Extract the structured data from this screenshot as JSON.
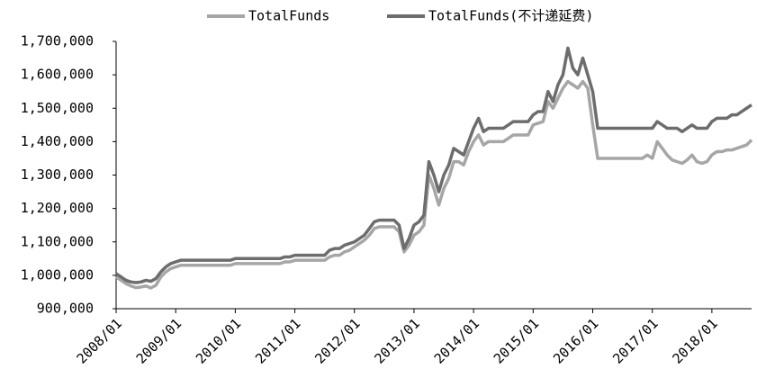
{
  "chart_data": {
    "type": "line",
    "categories": [
      "2008/01",
      null,
      null,
      null,
      null,
      null,
      null,
      null,
      null,
      null,
      null,
      null,
      "2009/01",
      null,
      null,
      null,
      null,
      null,
      null,
      null,
      null,
      null,
      null,
      null,
      "2010/01",
      null,
      null,
      null,
      null,
      null,
      null,
      null,
      null,
      null,
      null,
      null,
      "2011/01",
      null,
      null,
      null,
      null,
      null,
      null,
      null,
      null,
      null,
      null,
      null,
      "2012/01",
      null,
      null,
      null,
      null,
      null,
      null,
      null,
      null,
      null,
      null,
      null,
      "2013/01",
      null,
      null,
      null,
      null,
      null,
      null,
      null,
      null,
      null,
      null,
      null,
      "2014/01",
      null,
      null,
      null,
      null,
      null,
      null,
      null,
      null,
      null,
      null,
      null,
      "2015/01",
      null,
      null,
      null,
      null,
      null,
      null,
      null,
      null,
      null,
      null,
      null,
      "2016/01",
      null,
      null,
      null,
      null,
      null,
      null,
      null,
      null,
      null,
      null,
      null,
      "2017/01",
      null,
      null,
      null,
      null,
      null,
      null,
      null,
      null,
      null,
      null,
      null,
      "2018/01",
      null,
      null,
      null,
      null,
      null,
      null,
      null,
      null
    ],
    "series": [
      {
        "name": "TotalFunds",
        "color": "#a6a6a6",
        "values": [
          995000,
          985000,
          975000,
          968000,
          963000,
          965000,
          968000,
          962000,
          970000,
          995000,
          1010000,
          1020000,
          1025000,
          1030000,
          1030000,
          1030000,
          1030000,
          1030000,
          1030000,
          1030000,
          1030000,
          1030000,
          1030000,
          1030000,
          1035000,
          1035000,
          1035000,
          1035000,
          1035000,
          1035000,
          1035000,
          1035000,
          1035000,
          1035000,
          1040000,
          1040000,
          1045000,
          1045000,
          1045000,
          1045000,
          1045000,
          1045000,
          1045000,
          1055000,
          1060000,
          1060000,
          1070000,
          1075000,
          1085000,
          1095000,
          1105000,
          1120000,
          1140000,
          1145000,
          1145000,
          1145000,
          1145000,
          1130000,
          1070000,
          1090000,
          1120000,
          1130000,
          1150000,
          1300000,
          1260000,
          1210000,
          1260000,
          1290000,
          1340000,
          1340000,
          1330000,
          1370000,
          1400000,
          1420000,
          1390000,
          1400000,
          1400000,
          1400000,
          1400000,
          1410000,
          1420000,
          1420000,
          1420000,
          1420000,
          1450000,
          1455000,
          1460000,
          1520000,
          1500000,
          1530000,
          1560000,
          1580000,
          1570000,
          1560000,
          1580000,
          1560000,
          1450000,
          1350000,
          1350000,
          1350000,
          1350000,
          1350000,
          1350000,
          1350000,
          1350000,
          1350000,
          1350000,
          1360000,
          1350000,
          1400000,
          1380000,
          1360000,
          1345000,
          1340000,
          1335000,
          1345000,
          1360000,
          1340000,
          1335000,
          1340000,
          1360000,
          1370000,
          1370000,
          1375000,
          1375000,
          1380000,
          1385000,
          1390000,
          1405000
        ]
      },
      {
        "name": "TotalFunds(不计递延费)",
        "color": "#6d6d6d",
        "values": [
          1005000,
          995000,
          985000,
          980000,
          978000,
          980000,
          985000,
          982000,
          990000,
          1010000,
          1025000,
          1035000,
          1040000,
          1045000,
          1045000,
          1045000,
          1045000,
          1045000,
          1045000,
          1045000,
          1045000,
          1045000,
          1045000,
          1045000,
          1050000,
          1050000,
          1050000,
          1050000,
          1050000,
          1050000,
          1050000,
          1050000,
          1050000,
          1050000,
          1055000,
          1055000,
          1060000,
          1060000,
          1060000,
          1060000,
          1060000,
          1060000,
          1060000,
          1075000,
          1080000,
          1080000,
          1090000,
          1095000,
          1100000,
          1110000,
          1120000,
          1140000,
          1160000,
          1165000,
          1165000,
          1165000,
          1165000,
          1150000,
          1080000,
          1110000,
          1150000,
          1160000,
          1180000,
          1340000,
          1300000,
          1250000,
          1300000,
          1330000,
          1380000,
          1370000,
          1360000,
          1400000,
          1440000,
          1470000,
          1430000,
          1440000,
          1440000,
          1440000,
          1440000,
          1450000,
          1460000,
          1460000,
          1460000,
          1460000,
          1480000,
          1490000,
          1490000,
          1550000,
          1520000,
          1570000,
          1600000,
          1680000,
          1620000,
          1600000,
          1650000,
          1600000,
          1550000,
          1440000,
          1440000,
          1440000,
          1440000,
          1440000,
          1440000,
          1440000,
          1440000,
          1440000,
          1440000,
          1440000,
          1440000,
          1460000,
          1450000,
          1440000,
          1440000,
          1440000,
          1430000,
          1440000,
          1450000,
          1440000,
          1440000,
          1440000,
          1460000,
          1470000,
          1470000,
          1470000,
          1480000,
          1480000,
          1490000,
          1500000,
          1510000
        ]
      }
    ],
    "ylim": [
      900000,
      1700000
    ],
    "yticks": [
      {
        "value": 900000,
        "label": "900,000"
      },
      {
        "value": 1000000,
        "label": "1,000,000"
      },
      {
        "value": 1100000,
        "label": "1,100,000"
      },
      {
        "value": 1200000,
        "label": "1,200,000"
      },
      {
        "value": 1300000,
        "label": "1,300,000"
      },
      {
        "value": 1400000,
        "label": "1,400,000"
      },
      {
        "value": 1500000,
        "label": "1,500,000"
      },
      {
        "value": 1600000,
        "label": "1,600,000"
      },
      {
        "value": 1700000,
        "label": "1,700,000"
      }
    ],
    "grid": false,
    "legend": "top"
  }
}
